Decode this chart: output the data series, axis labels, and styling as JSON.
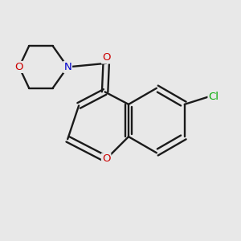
{
  "bg_color": "#e8e8e8",
  "bond_color": "#1a1a1a",
  "atom_colors": {
    "O": "#cc0000",
    "N": "#0000cc",
    "Cl": "#00aa00"
  },
  "lw": 1.7,
  "dbo": 0.012,
  "fontsize": 9.5
}
